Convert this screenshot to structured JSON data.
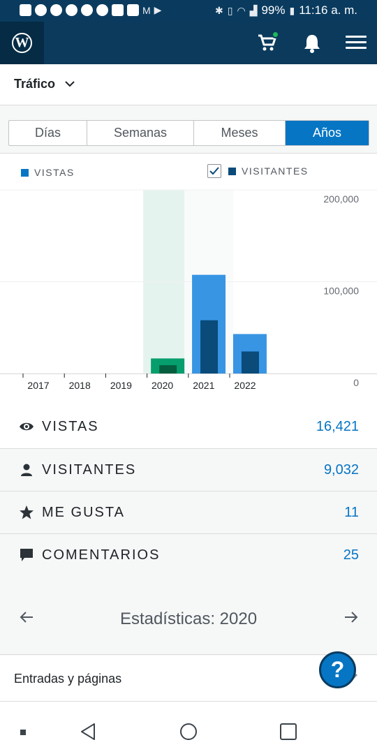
{
  "status_bar": {
    "battery": "99%",
    "time": "11:16 a. m."
  },
  "app_bar": {
    "logo_letter": "W",
    "icons": [
      "wordpress-icon",
      "cart-icon",
      "bell-icon",
      "menu-icon"
    ]
  },
  "filter": {
    "label": "Tráfico"
  },
  "segments": [
    {
      "label": "Días",
      "active": false
    },
    {
      "label": "Semanas",
      "active": false
    },
    {
      "label": "Meses",
      "active": false
    },
    {
      "label": "Años",
      "active": true
    }
  ],
  "legend": {
    "views": "VISTAS",
    "visitors": "VISITANTES",
    "visitors_checked": true
  },
  "colors": {
    "accent": "#0675c4",
    "views": "#3895e4",
    "visitors": "#0a4b7a",
    "selected_views": "#069e6d",
    "selected_visitors": "#045e3f",
    "selected_band": "#e5f3ee",
    "dark_bar": "#0b3a5c"
  },
  "chart_data": {
    "type": "bar",
    "categories": [
      "2017",
      "2018",
      "2019",
      "2020",
      "2021",
      "2022"
    ],
    "series": [
      {
        "name": "VISTAS",
        "values": [
          0,
          0,
          0,
          16421,
          107500,
          43000
        ]
      },
      {
        "name": "VISITANTES",
        "values": [
          0,
          0,
          0,
          9032,
          58000,
          24000
        ]
      }
    ],
    "y_ticks": [
      "200,000",
      "100,000",
      "0"
    ],
    "ylim": [
      0,
      200000
    ],
    "selected_category": "2020"
  },
  "stats": [
    {
      "label": "VISTAS",
      "value": "16,421",
      "icon": "eye-icon"
    },
    {
      "label": "VISITANTES",
      "value": "9,032",
      "icon": "person-icon"
    },
    {
      "label": "ME GUSTA",
      "value": "11",
      "icon": "star-icon"
    },
    {
      "label": "COMENTARIOS",
      "value": "25",
      "icon": "comment-icon"
    }
  ],
  "period": {
    "title": "Estadísticas: 2020"
  },
  "posts": {
    "label": "Entradas y páginas"
  },
  "help": {
    "label": "?"
  }
}
